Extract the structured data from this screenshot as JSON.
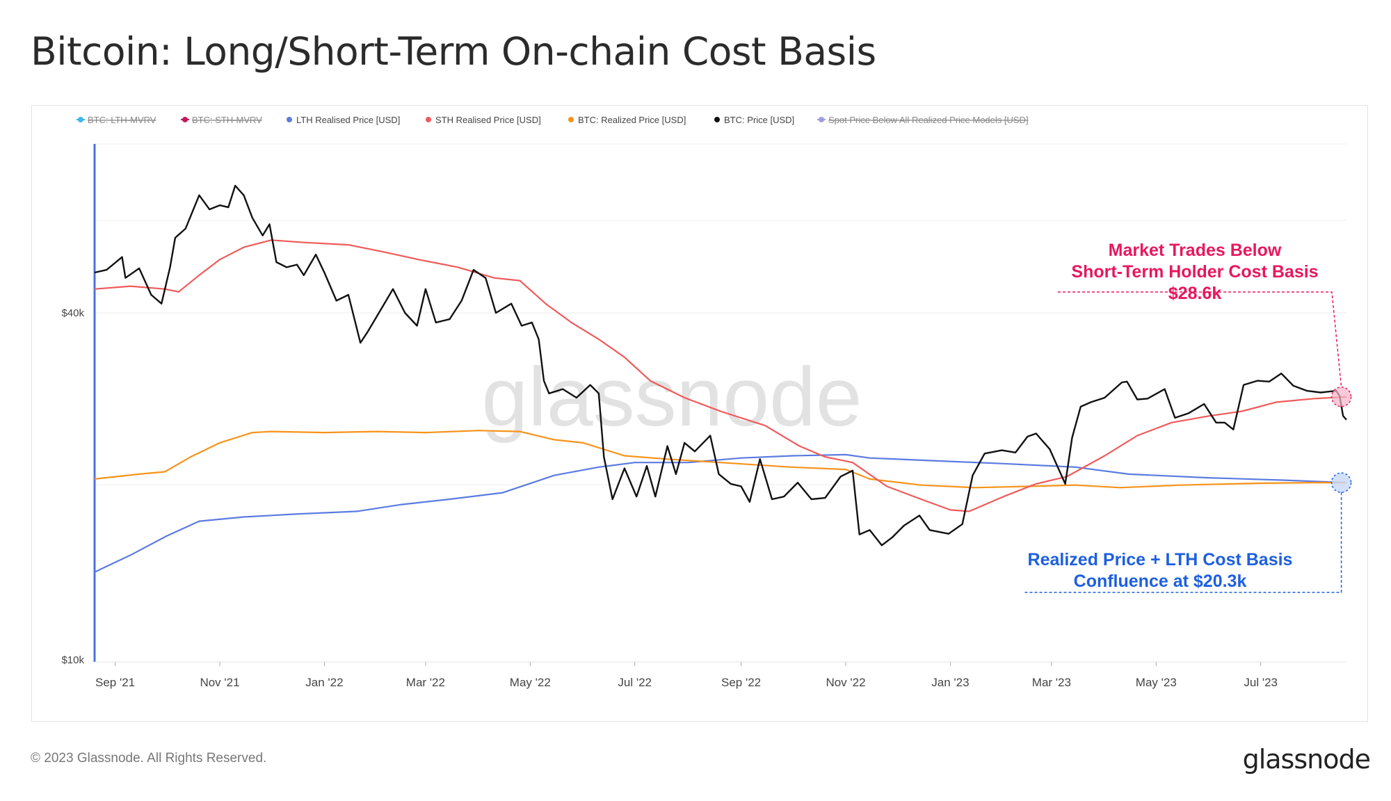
{
  "title": "Bitcoin: Long/Short-Term On-chain Cost Basis",
  "footer": "© 2023 Glassnode. All Rights Reserved.",
  "brand": "glassnode",
  "watermark": "glassnode",
  "legend": [
    {
      "label": "BTC: LTH-MVRV",
      "color": "#3fb6e8",
      "disabled": true
    },
    {
      "label": "BTC: STH-MVRV",
      "color": "#c2185b",
      "disabled": true
    },
    {
      "label": "LTH Realised Price [USD]",
      "color": "#5b7be0",
      "disabled": false
    },
    {
      "label": "STH Realised Price [USD]",
      "color": "#f05a5a",
      "disabled": false
    },
    {
      "label": "BTC: Realized Price [USD]",
      "color": "#f7931a",
      "disabled": false
    },
    {
      "label": "BTC: Price [USD]",
      "color": "#111111",
      "disabled": false
    },
    {
      "label": "Spot Price Below All Realized Price Models [USD]",
      "color": "#9e9edc",
      "disabled": true
    }
  ],
  "annotations": {
    "sth": {
      "lines": [
        "Market Trades Below",
        "Short-Term Holder Cost Basis",
        "$28.6k"
      ],
      "color": "#e8175d"
    },
    "lth": {
      "lines": [
        "Realized Price + LTH Cost Basis",
        "Confluence at $20.3k"
      ],
      "color": "#1d5fe0"
    }
  },
  "chart_data": {
    "type": "line",
    "x_range": [
      "2021-08-20",
      "2023-08-20"
    ],
    "y_scale": "log",
    "y_ticks": [
      {
        "value": 40000,
        "label": "$40k"
      },
      {
        "value": 10000,
        "label": "$10k"
      }
    ],
    "x_ticks": [
      {
        "date": "2021-09-01",
        "label": "Sep '21"
      },
      {
        "date": "2021-11-01",
        "label": "Nov '21"
      },
      {
        "date": "2022-01-01",
        "label": "Jan '22"
      },
      {
        "date": "2022-03-01",
        "label": "Mar '22"
      },
      {
        "date": "2022-05-01",
        "label": "May '22"
      },
      {
        "date": "2022-07-01",
        "label": "Jul '22"
      },
      {
        "date": "2022-09-01",
        "label": "Sep '22"
      },
      {
        "date": "2022-11-01",
        "label": "Nov '22"
      },
      {
        "date": "2023-01-01",
        "label": "Jan '23"
      },
      {
        "date": "2023-03-01",
        "label": "Mar '23"
      },
      {
        "date": "2023-05-01",
        "label": "May '23"
      },
      {
        "date": "2023-07-01",
        "label": "Jul '23"
      }
    ],
    "series": [
      {
        "name": "BTC: Price [USD]",
        "color": "#111111",
        "points": [
          [
            "2021-08-20",
            47000
          ],
          [
            "2021-08-27",
            47500
          ],
          [
            "2021-09-05",
            50000
          ],
          [
            "2021-09-07",
            46000
          ],
          [
            "2021-09-15",
            47800
          ],
          [
            "2021-09-22",
            43000
          ],
          [
            "2021-09-28",
            41500
          ],
          [
            "2021-10-03",
            48000
          ],
          [
            "2021-10-06",
            54000
          ],
          [
            "2021-10-12",
            56000
          ],
          [
            "2021-10-20",
            64000
          ],
          [
            "2021-10-26",
            60500
          ],
          [
            "2021-11-01",
            61500
          ],
          [
            "2021-11-06",
            61000
          ],
          [
            "2021-11-10",
            66500
          ],
          [
            "2021-11-15",
            64000
          ],
          [
            "2021-11-20",
            58500
          ],
          [
            "2021-11-26",
            54500
          ],
          [
            "2021-11-30",
            57000
          ],
          [
            "2021-12-04",
            49000
          ],
          [
            "2021-12-10",
            48000
          ],
          [
            "2021-12-16",
            48500
          ],
          [
            "2021-12-20",
            46500
          ],
          [
            "2021-12-27",
            50500
          ],
          [
            "2022-01-01",
            47000
          ],
          [
            "2022-01-08",
            42000
          ],
          [
            "2022-01-15",
            43000
          ],
          [
            "2022-01-22",
            35500
          ],
          [
            "2022-01-26",
            37000
          ],
          [
            "2022-02-06",
            42000
          ],
          [
            "2022-02-10",
            44000
          ],
          [
            "2022-02-17",
            40000
          ],
          [
            "2022-02-24",
            38000
          ],
          [
            "2022-03-01",
            44000
          ],
          [
            "2022-03-07",
            38500
          ],
          [
            "2022-03-15",
            39000
          ],
          [
            "2022-03-22",
            42000
          ],
          [
            "2022-03-29",
            47500
          ],
          [
            "2022-04-05",
            46000
          ],
          [
            "2022-04-11",
            40000
          ],
          [
            "2022-04-20",
            41500
          ],
          [
            "2022-04-26",
            38000
          ],
          [
            "2022-05-02",
            38500
          ],
          [
            "2022-05-06",
            36000
          ],
          [
            "2022-05-09",
            30500
          ],
          [
            "2022-05-12",
            29000
          ],
          [
            "2022-05-20",
            29500
          ],
          [
            "2022-05-28",
            28500
          ],
          [
            "2022-06-05",
            30000
          ],
          [
            "2022-06-10",
            29000
          ],
          [
            "2022-06-13",
            22500
          ],
          [
            "2022-06-18",
            19000
          ],
          [
            "2022-06-25",
            21500
          ],
          [
            "2022-07-02",
            19200
          ],
          [
            "2022-07-08",
            21700
          ],
          [
            "2022-07-13",
            19200
          ],
          [
            "2022-07-20",
            23500
          ],
          [
            "2022-07-25",
            21000
          ],
          [
            "2022-07-30",
            23800
          ],
          [
            "2022-08-05",
            23000
          ],
          [
            "2022-08-14",
            24500
          ],
          [
            "2022-08-19",
            21000
          ],
          [
            "2022-08-26",
            20200
          ],
          [
            "2022-09-01",
            20000
          ],
          [
            "2022-09-06",
            18800
          ],
          [
            "2022-09-12",
            22300
          ],
          [
            "2022-09-19",
            19000
          ],
          [
            "2022-09-26",
            19200
          ],
          [
            "2022-10-04",
            20300
          ],
          [
            "2022-10-12",
            19000
          ],
          [
            "2022-10-20",
            19100
          ],
          [
            "2022-10-29",
            20800
          ],
          [
            "2022-11-05",
            21300
          ],
          [
            "2022-11-09",
            16500
          ],
          [
            "2022-11-15",
            16800
          ],
          [
            "2022-11-22",
            15800
          ],
          [
            "2022-11-28",
            16300
          ],
          [
            "2022-12-05",
            17100
          ],
          [
            "2022-12-14",
            17800
          ],
          [
            "2022-12-20",
            16800
          ],
          [
            "2022-12-31",
            16550
          ],
          [
            "2023-01-08",
            17200
          ],
          [
            "2023-01-14",
            20900
          ],
          [
            "2023-01-21",
            22800
          ],
          [
            "2023-01-31",
            23100
          ],
          [
            "2023-02-08",
            22900
          ],
          [
            "2023-02-15",
            24400
          ],
          [
            "2023-02-20",
            24700
          ],
          [
            "2023-02-28",
            23200
          ],
          [
            "2023-03-09",
            20200
          ],
          [
            "2023-03-13",
            24300
          ],
          [
            "2023-03-18",
            27500
          ],
          [
            "2023-03-24",
            28000
          ],
          [
            "2023-04-01",
            28500
          ],
          [
            "2023-04-11",
            30300
          ],
          [
            "2023-04-14",
            30400
          ],
          [
            "2023-04-20",
            28300
          ],
          [
            "2023-04-26",
            28400
          ],
          [
            "2023-05-06",
            29500
          ],
          [
            "2023-05-12",
            26300
          ],
          [
            "2023-05-20",
            26800
          ],
          [
            "2023-05-29",
            27800
          ],
          [
            "2023-06-05",
            25800
          ],
          [
            "2023-06-10",
            25800
          ],
          [
            "2023-06-15",
            25100
          ],
          [
            "2023-06-21",
            30000
          ],
          [
            "2023-06-29",
            30500
          ],
          [
            "2023-07-06",
            30400
          ],
          [
            "2023-07-13",
            31400
          ],
          [
            "2023-07-20",
            29900
          ],
          [
            "2023-07-28",
            29300
          ],
          [
            "2023-08-05",
            29100
          ],
          [
            "2023-08-14",
            29300
          ],
          [
            "2023-08-16",
            28700
          ],
          [
            "2023-08-18",
            26500
          ],
          [
            "2023-08-20",
            26100
          ]
        ]
      },
      {
        "name": "STH Realised Price [USD]",
        "color": "#f05a5a",
        "points": [
          [
            "2021-08-20",
            44000
          ],
          [
            "2021-09-10",
            44500
          ],
          [
            "2021-09-30",
            44000
          ],
          [
            "2021-10-08",
            43500
          ],
          [
            "2021-10-20",
            46500
          ],
          [
            "2021-11-01",
            49500
          ],
          [
            "2021-11-15",
            52000
          ],
          [
            "2021-12-01",
            53500
          ],
          [
            "2021-12-20",
            53000
          ],
          [
            "2022-01-15",
            52500
          ],
          [
            "2022-02-05",
            51000
          ],
          [
            "2022-02-25",
            49500
          ],
          [
            "2022-03-20",
            48000
          ],
          [
            "2022-04-10",
            46000
          ],
          [
            "2022-04-25",
            45500
          ],
          [
            "2022-05-10",
            41500
          ],
          [
            "2022-05-25",
            38500
          ],
          [
            "2022-06-10",
            36000
          ],
          [
            "2022-06-25",
            33500
          ],
          [
            "2022-07-10",
            30500
          ],
          [
            "2022-07-30",
            28500
          ],
          [
            "2022-08-20",
            27000
          ],
          [
            "2022-09-15",
            25500
          ],
          [
            "2022-10-05",
            23500
          ],
          [
            "2022-10-20",
            22500
          ],
          [
            "2022-11-05",
            22000
          ],
          [
            "2022-11-25",
            20000
          ],
          [
            "2022-12-15",
            19000
          ],
          [
            "2023-01-01",
            18200
          ],
          [
            "2023-01-12",
            18100
          ],
          [
            "2023-02-01",
            19200
          ],
          [
            "2023-02-20",
            20200
          ],
          [
            "2023-03-10",
            20800
          ],
          [
            "2023-04-01",
            22600
          ],
          [
            "2023-04-20",
            24500
          ],
          [
            "2023-05-10",
            25800
          ],
          [
            "2023-06-01",
            26500
          ],
          [
            "2023-06-20",
            27000
          ],
          [
            "2023-07-10",
            28000
          ],
          [
            "2023-08-01",
            28400
          ],
          [
            "2023-08-20",
            28600
          ]
        ]
      },
      {
        "name": "BTC: Realized Price [USD]",
        "color": "#f7931a",
        "points": [
          [
            "2021-08-20",
            20600
          ],
          [
            "2021-09-15",
            21000
          ],
          [
            "2021-09-30",
            21200
          ],
          [
            "2021-10-15",
            22500
          ],
          [
            "2021-11-01",
            23800
          ],
          [
            "2021-11-20",
            24800
          ],
          [
            "2021-12-01",
            24900
          ],
          [
            "2022-01-01",
            24800
          ],
          [
            "2022-02-01",
            24900
          ],
          [
            "2022-03-01",
            24800
          ],
          [
            "2022-04-01",
            25000
          ],
          [
            "2022-04-25",
            24900
          ],
          [
            "2022-05-15",
            24100
          ],
          [
            "2022-06-01",
            23800
          ],
          [
            "2022-06-25",
            22600
          ],
          [
            "2022-07-20",
            22300
          ],
          [
            "2022-08-20",
            22000
          ],
          [
            "2022-09-30",
            21600
          ],
          [
            "2022-11-01",
            21400
          ],
          [
            "2022-11-15",
            20600
          ],
          [
            "2022-12-15",
            20100
          ],
          [
            "2023-01-15",
            19900
          ],
          [
            "2023-02-15",
            20000
          ],
          [
            "2023-03-15",
            20100
          ],
          [
            "2023-04-10",
            19900
          ],
          [
            "2023-05-15",
            20100
          ],
          [
            "2023-06-30",
            20250
          ],
          [
            "2023-07-31",
            20300
          ],
          [
            "2023-08-20",
            20300
          ]
        ]
      },
      {
        "name": "LTH Realised Price [USD]",
        "color": "#5b7be0",
        "points": [
          [
            "2021-08-20",
            14200
          ],
          [
            "2021-09-10",
            15200
          ],
          [
            "2021-10-01",
            16400
          ],
          [
            "2021-10-20",
            17400
          ],
          [
            "2021-11-15",
            17700
          ],
          [
            "2021-12-15",
            17900
          ],
          [
            "2022-01-20",
            18100
          ],
          [
            "2022-02-15",
            18600
          ],
          [
            "2022-03-15",
            19000
          ],
          [
            "2022-04-15",
            19500
          ],
          [
            "2022-05-15",
            20900
          ],
          [
            "2022-06-10",
            21600
          ],
          [
            "2022-07-01",
            22000
          ],
          [
            "2022-08-01",
            22000
          ],
          [
            "2022-09-01",
            22400
          ],
          [
            "2022-10-01",
            22600
          ],
          [
            "2022-11-01",
            22700
          ],
          [
            "2022-11-15",
            22400
          ],
          [
            "2023-01-01",
            22100
          ],
          [
            "2023-02-01",
            21900
          ],
          [
            "2023-03-15",
            21600
          ],
          [
            "2023-04-15",
            21000
          ],
          [
            "2023-05-31",
            20700
          ],
          [
            "2023-07-15",
            20500
          ],
          [
            "2023-08-20",
            20300
          ]
        ]
      }
    ]
  }
}
